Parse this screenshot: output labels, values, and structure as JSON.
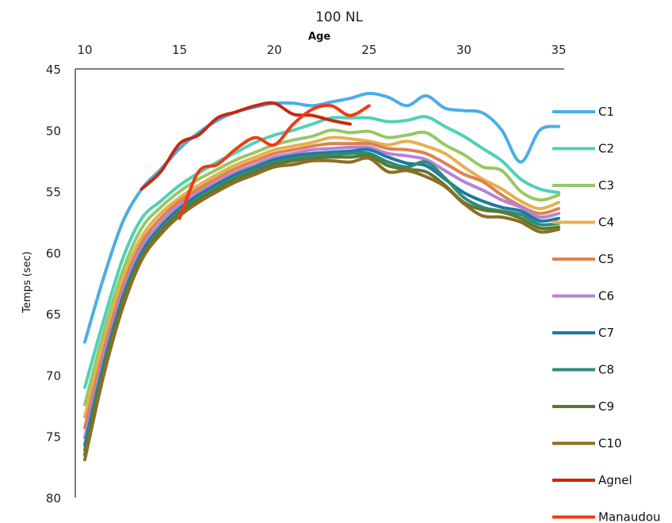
{
  "chart_data": {
    "type": "line",
    "title": "100 NL",
    "xlabel": "Age",
    "ylabel": "Temps (sec)",
    "xlim": [
      10,
      35
    ],
    "ylim": [
      45,
      80
    ],
    "y_reversed": true,
    "x_axis_position": "top",
    "x_ticks": [
      "10",
      "15",
      "20",
      "25",
      "30",
      "35"
    ],
    "y_ticks": [
      "45",
      "50",
      "55",
      "60",
      "65",
      "70",
      "75",
      "80"
    ],
    "grid": false,
    "legend_position": "right",
    "series": [
      {
        "name": "C1",
        "color": "#4aaee6",
        "x": [
          10,
          11,
          12,
          13,
          14,
          15,
          16,
          17,
          18,
          19,
          20,
          21,
          22,
          23,
          24,
          25,
          26,
          27,
          28,
          29,
          30,
          31,
          32,
          33,
          34,
          35
        ],
        "y": [
          67.3,
          62.0,
          57.5,
          54.8,
          53.2,
          51.5,
          50.2,
          49.2,
          48.5,
          48.1,
          47.8,
          47.8,
          48.0,
          47.7,
          47.4,
          47.0,
          47.3,
          48.0,
          47.2,
          48.2,
          48.4,
          48.6,
          50.0,
          52.6,
          50.0,
          49.7
        ]
      },
      {
        "name": "C2",
        "color": "#4fd1b6",
        "x": [
          10,
          11,
          12,
          13,
          14,
          15,
          16,
          17,
          18,
          19,
          20,
          21,
          22,
          23,
          24,
          25,
          26,
          27,
          28,
          29,
          30,
          31,
          32,
          33,
          34,
          35
        ],
        "y": [
          71.0,
          65.5,
          60.5,
          57.2,
          55.8,
          54.5,
          53.5,
          52.6,
          51.8,
          51.0,
          50.4,
          50.0,
          49.5,
          49.0,
          49.0,
          49.0,
          49.3,
          49.2,
          48.9,
          49.7,
          50.5,
          51.5,
          52.5,
          54.0,
          54.8,
          55.1
        ]
      },
      {
        "name": "C3",
        "color": "#96c864",
        "x": [
          10,
          11,
          12,
          13,
          14,
          15,
          16,
          17,
          18,
          19,
          20,
          21,
          22,
          23,
          24,
          25,
          26,
          27,
          28,
          29,
          30,
          31,
          32,
          33,
          34,
          35
        ],
        "y": [
          72.4,
          66.5,
          61.5,
          58.0,
          56.3,
          55.0,
          54.0,
          53.2,
          52.4,
          51.8,
          51.2,
          50.8,
          50.5,
          50.0,
          50.2,
          50.1,
          50.6,
          50.4,
          50.2,
          51.2,
          52.0,
          53.0,
          53.3,
          55.0,
          55.7,
          55.3
        ]
      },
      {
        "name": "C4",
        "color": "#e6b050",
        "x": [
          10,
          11,
          12,
          13,
          14,
          15,
          16,
          17,
          18,
          19,
          20,
          21,
          22,
          23,
          24,
          25,
          26,
          27,
          28,
          29,
          30,
          31,
          32,
          33,
          34,
          35
        ],
        "y": [
          73.4,
          67.3,
          62.2,
          58.7,
          56.8,
          55.5,
          54.5,
          53.6,
          52.8,
          52.2,
          51.6,
          51.3,
          51.0,
          50.6,
          50.7,
          50.9,
          51.2,
          50.9,
          51.3,
          51.9,
          53.0,
          54.0,
          54.8,
          55.8,
          56.4,
          55.9
        ]
      },
      {
        "name": "C5",
        "color": "#dc8250",
        "x": [
          10,
          11,
          12,
          13,
          14,
          15,
          16,
          17,
          18,
          19,
          20,
          21,
          22,
          23,
          24,
          25,
          26,
          27,
          28,
          29,
          30,
          31,
          32,
          33,
          34,
          35
        ],
        "y": [
          74.3,
          68.0,
          62.8,
          59.2,
          57.2,
          55.8,
          54.8,
          53.9,
          53.1,
          52.5,
          51.9,
          51.6,
          51.3,
          51.1,
          51.1,
          51.1,
          51.5,
          51.6,
          51.9,
          52.7,
          53.6,
          54.2,
          55.3,
          56.2,
          56.8,
          56.4
        ]
      },
      {
        "name": "C6",
        "color": "#b482dc",
        "x": [
          10,
          11,
          12,
          13,
          14,
          15,
          16,
          17,
          18,
          19,
          20,
          21,
          22,
          23,
          24,
          25,
          26,
          27,
          28,
          29,
          30,
          31,
          32,
          33,
          34,
          35
        ],
        "y": [
          75.1,
          68.6,
          63.3,
          59.6,
          57.6,
          56.1,
          55.1,
          54.2,
          53.4,
          52.8,
          52.2,
          51.9,
          51.6,
          51.5,
          51.4,
          51.4,
          51.9,
          52.1,
          52.4,
          53.3,
          54.2,
          54.9,
          55.7,
          56.3,
          57.1,
          56.8
        ]
      },
      {
        "name": "C7",
        "color": "#1e78a0",
        "x": [
          10,
          11,
          12,
          13,
          14,
          15,
          16,
          17,
          18,
          19,
          20,
          21,
          22,
          23,
          24,
          25,
          26,
          27,
          28,
          29,
          30,
          31,
          32,
          33,
          34,
          35
        ],
        "y": [
          75.7,
          69.1,
          63.7,
          60.0,
          57.9,
          56.4,
          55.3,
          54.4,
          53.6,
          53.0,
          52.4,
          52.1,
          51.9,
          51.8,
          51.7,
          51.6,
          52.2,
          52.7,
          52.9,
          54.0,
          55.1,
          55.8,
          56.3,
          56.6,
          57.4,
          57.2
        ]
      },
      {
        "name": "C8",
        "color": "#2d8c78",
        "x": [
          10,
          11,
          12,
          13,
          14,
          15,
          16,
          17,
          18,
          19,
          20,
          21,
          22,
          23,
          24,
          25,
          26,
          27,
          28,
          29,
          30,
          31,
          32,
          33,
          34,
          35
        ],
        "y": [
          76.1,
          69.4,
          64.0,
          60.2,
          58.1,
          56.6,
          55.5,
          54.6,
          53.8,
          53.2,
          52.6,
          52.3,
          52.1,
          52.0,
          51.9,
          51.9,
          52.6,
          53.0,
          52.6,
          53.9,
          55.5,
          56.3,
          56.6,
          56.9,
          57.7,
          57.6
        ]
      },
      {
        "name": "C9",
        "color": "#5a7832",
        "x": [
          10,
          11,
          12,
          13,
          14,
          15,
          16,
          17,
          18,
          19,
          20,
          21,
          22,
          23,
          24,
          25,
          26,
          27,
          28,
          29,
          30,
          31,
          32,
          33,
          34,
          35
        ],
        "y": [
          76.5,
          69.7,
          64.2,
          60.4,
          58.3,
          56.8,
          55.7,
          54.8,
          54.0,
          53.4,
          52.8,
          52.5,
          52.3,
          52.2,
          52.2,
          52.1,
          52.9,
          53.2,
          53.4,
          54.5,
          55.9,
          56.5,
          56.7,
          57.2,
          58.0,
          57.9
        ]
      },
      {
        "name": "C10",
        "color": "#8c6e23",
        "x": [
          10,
          11,
          12,
          13,
          14,
          15,
          16,
          17,
          18,
          19,
          20,
          21,
          22,
          23,
          24,
          25,
          26,
          27,
          28,
          29,
          30,
          31,
          32,
          33,
          34,
          35
        ],
        "y": [
          76.9,
          70.0,
          64.5,
          60.6,
          58.5,
          57.0,
          55.9,
          55.0,
          54.2,
          53.6,
          53.0,
          52.8,
          52.5,
          52.5,
          52.6,
          52.3,
          53.4,
          53.3,
          53.8,
          54.6,
          56.0,
          57.0,
          57.1,
          57.5,
          58.3,
          58.1
        ]
      },
      {
        "name": "Agnel",
        "color": "#c8280f",
        "x": [
          13,
          14,
          15,
          16,
          17,
          18,
          19,
          20,
          21,
          22,
          23,
          24
        ],
        "y": [
          54.8,
          53.4,
          51.1,
          50.4,
          49.0,
          48.5,
          48.0,
          47.8,
          48.7,
          48.8,
          49.2,
          49.5
        ]
      },
      {
        "name": "Manaudou",
        "color": "#f03c14",
        "x": [
          15,
          16,
          17,
          18,
          19,
          20,
          21,
          22,
          23,
          24,
          25
        ],
        "y": [
          57.2,
          53.4,
          52.8,
          51.5,
          50.6,
          51.2,
          49.5,
          48.3,
          48.0,
          48.8,
          48.0
        ]
      }
    ]
  }
}
